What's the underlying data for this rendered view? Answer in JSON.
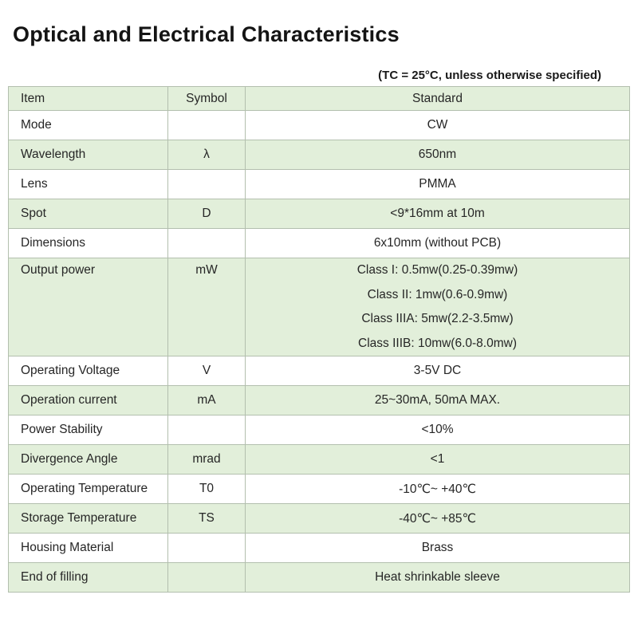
{
  "page": {
    "title": "Optical and Electrical Characteristics",
    "note": "(TC = 25°C, unless otherwise specified)"
  },
  "table": {
    "headers": {
      "item": "Item",
      "symbol": "Symbol",
      "standard": "Standard"
    },
    "rows": [
      {
        "item": "Mode",
        "symbol": "",
        "standard": [
          "CW"
        ]
      },
      {
        "item": "Wavelength",
        "symbol": "λ",
        "standard": [
          "650nm"
        ]
      },
      {
        "item": "Lens",
        "symbol": "",
        "standard": [
          "PMMA"
        ]
      },
      {
        "item": "Spot",
        "symbol": "D",
        "standard": [
          "<9*16mm at 10m"
        ]
      },
      {
        "item": "Dimensions",
        "symbol": "",
        "standard": [
          "6x10mm (without PCB)"
        ]
      },
      {
        "item": "Output power",
        "symbol": "mW",
        "standard": [
          "Class I: 0.5mw(0.25-0.39mw)",
          "Class II: 1mw(0.6-0.9mw)",
          "Class IIIA: 5mw(2.2-3.5mw)",
          "Class IIIB: 10mw(6.0-8.0mw)"
        ]
      },
      {
        "item": "Operating Voltage",
        "symbol": "V",
        "standard": [
          "3-5V DC"
        ]
      },
      {
        "item": "Operation current",
        "symbol": "mA",
        "standard": [
          "25~30mA, 50mA MAX."
        ]
      },
      {
        "item": "Power Stability",
        "symbol": "",
        "standard": [
          "<10%"
        ]
      },
      {
        "item": "Divergence Angle",
        "symbol": "mrad",
        "standard": [
          "<1"
        ]
      },
      {
        "item": "Operating Temperature",
        "symbol": "T0",
        "standard": [
          "-10℃~ +40℃"
        ]
      },
      {
        "item": "Storage Temperature",
        "symbol": "TS",
        "standard": [
          "-40℃~ +85℃"
        ]
      },
      {
        "item": "Housing Material",
        "symbol": "",
        "standard": [
          "Brass"
        ]
      },
      {
        "item": "End of filling",
        "symbol": "",
        "standard": [
          "Heat shrinkable sleeve"
        ]
      }
    ],
    "colors": {
      "row_green": "#e2efda",
      "row_white": "#ffffff",
      "border_light": "#b3bfae",
      "divider_dark": "#3f3f3f",
      "text": "#262626"
    }
  }
}
